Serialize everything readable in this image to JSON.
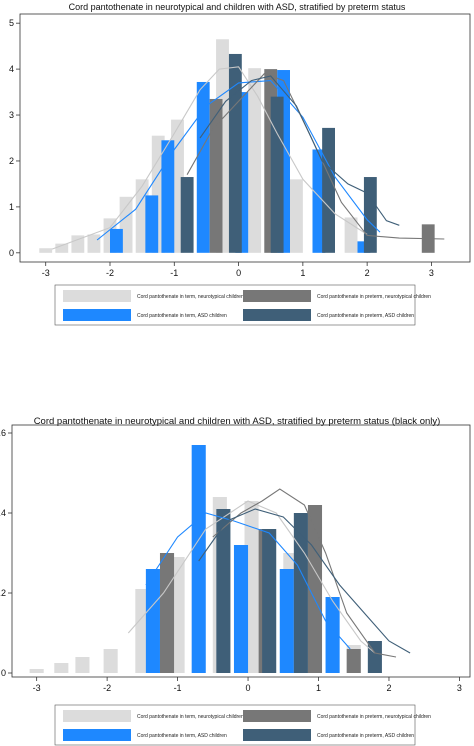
{
  "chart_data": [
    {
      "type": "bar",
      "title": "Cord pantothenate in neurotypical and children with ASD, stratified by preterm status",
      "xlabel": "",
      "ylabel": "",
      "xlim": [
        -3.4,
        3.6
      ],
      "ylim": [
        -0.2,
        5.2
      ],
      "xticks": [
        "-3",
        "-2",
        "-1",
        "0",
        "1",
        "2",
        "3"
      ],
      "yticks": [
        "0",
        "1",
        "2",
        "3",
        "4",
        "5"
      ],
      "bar_width": 0.2,
      "legend_position": "bottom",
      "series": [
        {
          "name": "Cord pantothenate in term, neurotypical children",
          "color": "#dcdcdc",
          "bars": [
            {
              "x": -3.0,
              "y": 0.1
            },
            {
              "x": -2.75,
              "y": 0.2
            },
            {
              "x": -2.5,
              "y": 0.38
            },
            {
              "x": -2.25,
              "y": 0.4
            },
            {
              "x": -2.0,
              "y": 0.75
            },
            {
              "x": -1.75,
              "y": 1.22
            },
            {
              "x": -1.5,
              "y": 1.6
            },
            {
              "x": -1.25,
              "y": 2.55
            },
            {
              "x": -0.95,
              "y": 2.9
            },
            {
              "x": -0.25,
              "y": 4.65
            },
            {
              "x": 0.25,
              "y": 4.02
            },
            {
              "x": 0.9,
              "y": 1.6
            },
            {
              "x": 1.75,
              "y": 0.77
            }
          ],
          "curve": [
            [
              -2.9,
              0.08
            ],
            [
              -2.0,
              0.55
            ],
            [
              -1.5,
              1.45
            ],
            [
              -1.0,
              2.6
            ],
            [
              -0.6,
              3.55
            ],
            [
              -0.3,
              4.0
            ],
            [
              0.0,
              4.05
            ],
            [
              0.3,
              3.4
            ],
            [
              0.6,
              2.6
            ],
            [
              1.0,
              1.6
            ],
            [
              1.5,
              0.85
            ],
            [
              2.0,
              0.4
            ]
          ]
        },
        {
          "name": "Cord pantothenate in term, ASD children",
          "color": "#1e88ff",
          "bars": [
            {
              "x": -1.9,
              "y": 0.52
            },
            {
              "x": -1.35,
              "y": 1.25
            },
            {
              "x": -1.1,
              "y": 2.45
            },
            {
              "x": -0.55,
              "y": 3.72
            },
            {
              "x": 0.05,
              "y": 3.5
            },
            {
              "x": 0.7,
              "y": 3.98
            },
            {
              "x": 1.25,
              "y": 2.25
            },
            {
              "x": 1.95,
              "y": 0.25
            }
          ],
          "curve": [
            [
              -2.2,
              0.28
            ],
            [
              -1.6,
              0.95
            ],
            [
              -1.0,
              2.25
            ],
            [
              -0.5,
              3.2
            ],
            [
              0.0,
              3.7
            ],
            [
              0.5,
              3.75
            ],
            [
              1.0,
              2.95
            ],
            [
              1.5,
              1.65
            ],
            [
              2.0,
              0.72
            ],
            [
              2.2,
              0.45
            ]
          ]
        },
        {
          "name": "Cord pantothenate in preterm, neurotypical children",
          "color": "#777777",
          "bars": [
            {
              "x": -0.35,
              "y": 3.35
            },
            {
              "x": 0.5,
              "y": 4.0
            },
            {
              "x": 2.95,
              "y": 0.62
            }
          ],
          "curve": [
            [
              -0.8,
              1.7
            ],
            [
              -0.4,
              2.7
            ],
            [
              0.0,
              3.3
            ],
            [
              0.4,
              3.9
            ],
            [
              0.7,
              3.75
            ],
            [
              1.1,
              2.6
            ],
            [
              1.6,
              1.1
            ],
            [
              2.0,
              0.38
            ],
            [
              2.5,
              0.32
            ],
            [
              3.2,
              0.3
            ]
          ]
        },
        {
          "name": "Cord pantothenate in preterm, ASD children",
          "color": "#3f5f78",
          "bars": [
            {
              "x": -0.8,
              "y": 1.65
            },
            {
              "x": -0.05,
              "y": 4.33
            },
            {
              "x": 0.6,
              "y": 3.4
            },
            {
              "x": 1.4,
              "y": 2.72
            },
            {
              "x": 2.05,
              "y": 1.65
            }
          ],
          "curve": [
            [
              -0.6,
              2.5
            ],
            [
              -0.2,
              3.3
            ],
            [
              0.2,
              3.75
            ],
            [
              0.5,
              3.85
            ],
            [
              0.9,
              3.2
            ],
            [
              1.3,
              2.0
            ],
            [
              1.7,
              1.5
            ],
            [
              2.0,
              1.3
            ],
            [
              2.3,
              0.7
            ],
            [
              2.5,
              0.6
            ]
          ]
        }
      ]
    },
    {
      "type": "bar",
      "title": "Cord pantothenate in neurotypical and children with ASD, stratified by preterm status (black only)",
      "xlabel": "",
      "ylabel": "",
      "xlim": [
        -3.35,
        3.15
      ],
      "ylim": [
        -0.01,
        0.62
      ],
      "xticks": [
        "-3",
        "-2",
        "-1",
        "0",
        "1",
        "2",
        "3"
      ],
      "yticks": [
        "0",
        ".2",
        ".4",
        ".6"
      ],
      "bar_width": 0.2,
      "legend_position": "bottom",
      "series": [
        {
          "name": "Cord pantothenate in term, neurotypical children",
          "color": "#dcdcdc",
          "bars": [
            {
              "x": -3.0,
              "y": 0.01
            },
            {
              "x": -2.65,
              "y": 0.025
            },
            {
              "x": -2.35,
              "y": 0.04
            },
            {
              "x": -1.95,
              "y": 0.06
            },
            {
              "x": -1.5,
              "y": 0.21
            },
            {
              "x": -1.0,
              "y": 0.29
            },
            {
              "x": -0.4,
              "y": 0.44
            },
            {
              "x": 0.05,
              "y": 0.43
            },
            {
              "x": 0.6,
              "y": 0.3
            },
            {
              "x": 1.5,
              "y": 0.07
            }
          ],
          "curve": [
            [
              -1.7,
              0.1
            ],
            [
              -1.2,
              0.2
            ],
            [
              -0.6,
              0.36
            ],
            [
              0.0,
              0.43
            ],
            [
              0.4,
              0.4
            ],
            [
              0.8,
              0.3
            ],
            [
              1.2,
              0.18
            ],
            [
              1.6,
              0.08
            ],
            [
              1.8,
              0.05
            ]
          ]
        },
        {
          "name": "Cord pantothenate in term, ASD children",
          "color": "#1e88ff",
          "bars": [
            {
              "x": -1.35,
              "y": 0.26
            },
            {
              "x": -0.7,
              "y": 0.57
            },
            {
              "x": -0.1,
              "y": 0.32
            },
            {
              "x": 0.55,
              "y": 0.26
            },
            {
              "x": 1.2,
              "y": 0.19
            }
          ],
          "curve": [
            [
              -1.45,
              0.22
            ],
            [
              -1.0,
              0.34
            ],
            [
              -0.6,
              0.4
            ],
            [
              -0.2,
              0.38
            ],
            [
              0.3,
              0.35
            ],
            [
              0.7,
              0.27
            ],
            [
              1.1,
              0.13
            ],
            [
              1.45,
              0.06
            ]
          ]
        },
        {
          "name": "Cord pantothenate in preterm, neurotypical children",
          "color": "#777777",
          "bars": [
            {
              "x": -1.15,
              "y": 0.3
            },
            {
              "x": 0.25,
              "y": 0.36
            },
            {
              "x": 0.95,
              "y": 0.42
            },
            {
              "x": 1.5,
              "y": 0.06
            }
          ],
          "curve": [
            [
              -0.5,
              0.34
            ],
            [
              -0.1,
              0.4
            ],
            [
              0.2,
              0.43
            ],
            [
              0.45,
              0.46
            ],
            [
              0.8,
              0.42
            ],
            [
              1.1,
              0.3
            ],
            [
              1.4,
              0.15
            ],
            [
              1.8,
              0.05
            ],
            [
              2.1,
              0.04
            ]
          ]
        },
        {
          "name": "Cord pantothenate in preterm, ASD children",
          "color": "#3f5f78",
          "bars": [
            {
              "x": -0.35,
              "y": 0.41
            },
            {
              "x": 0.3,
              "y": 0.36
            },
            {
              "x": 0.75,
              "y": 0.4
            },
            {
              "x": 1.8,
              "y": 0.08
            }
          ],
          "curve": [
            [
              -0.7,
              0.28
            ],
            [
              -0.3,
              0.38
            ],
            [
              0.1,
              0.41
            ],
            [
              0.5,
              0.39
            ],
            [
              0.9,
              0.32
            ],
            [
              1.3,
              0.22
            ],
            [
              1.7,
              0.14
            ],
            [
              2.0,
              0.08
            ],
            [
              2.3,
              0.05
            ]
          ]
        }
      ]
    }
  ]
}
